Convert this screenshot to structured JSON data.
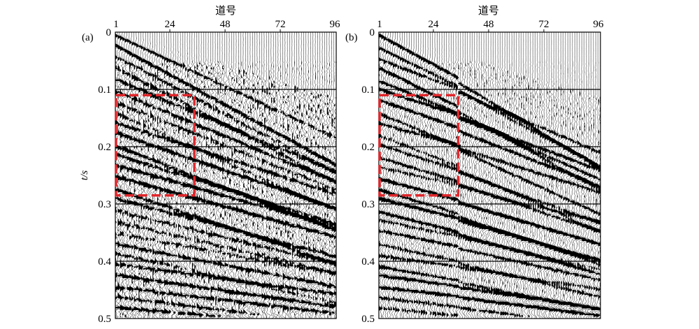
{
  "figure": {
    "panels": [
      {
        "label": "(a)",
        "x_axis_title": "道号",
        "x_ticks": [
          "1",
          "24",
          "48",
          "72",
          "96"
        ],
        "y_ticks": [
          "0",
          "0.1",
          "0.2",
          "0.3",
          "0.4",
          "0.5"
        ],
        "y_axis_title": "t/s",
        "highlight": {
          "trace_from": 1,
          "trace_to": 35,
          "t_from": 0.11,
          "t_to": 0.285,
          "color": "#e0262b"
        }
      },
      {
        "label": "(b)",
        "x_axis_title": "道号",
        "x_ticks": [
          "1",
          "24",
          "48",
          "72",
          "96"
        ],
        "y_ticks": [
          "0",
          "0.1",
          "0.2",
          "0.3",
          "0.4",
          "0.5"
        ],
        "highlight": {
          "trace_from": 1,
          "trace_to": 35,
          "t_from": 0.11,
          "t_to": 0.285,
          "color": "#e0262b"
        }
      }
    ],
    "trace_range": [
      1,
      96
    ],
    "time_range": [
      0,
      0.5
    ],
    "time_gridlines": [
      0.1,
      0.2,
      0.3,
      0.4
    ],
    "colors": {
      "ink": "#000000",
      "background": "#ffffff",
      "highlight": "#e0262b"
    }
  }
}
